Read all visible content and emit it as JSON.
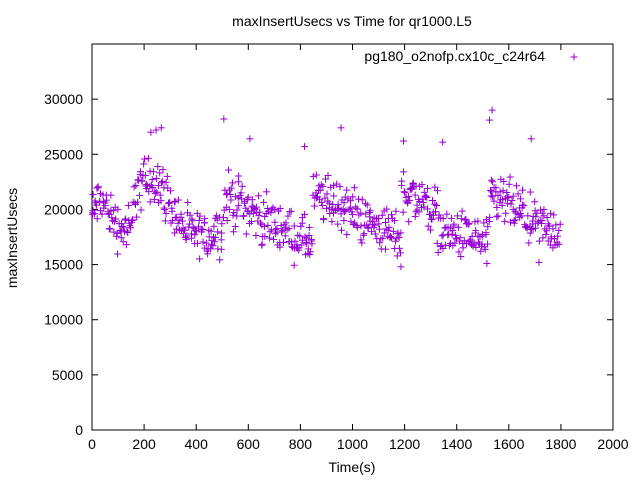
{
  "chart_data": {
    "type": "scatter",
    "title": "maxInsertUsecs vs Time for qr1000.L5",
    "xlabel": "Time(s)",
    "ylabel": "maxInsertUsecs",
    "xlim": [
      0,
      2000
    ],
    "ylim": [
      0,
      35000
    ],
    "x_ticks": [
      0,
      200,
      400,
      600,
      800,
      1000,
      1200,
      1400,
      1600,
      1800,
      2000
    ],
    "y_ticks": [
      0,
      5000,
      10000,
      15000,
      20000,
      25000,
      30000
    ],
    "grid": false,
    "legend_position": "top-right",
    "marker": "plus",
    "series": [
      {
        "name": "pg180_o2nofp.cx10c_c24r64",
        "color": "#9400d3",
        "x_range": [
          0,
          1795
        ],
        "x_step": 5,
        "segments": [
          {
            "x": [
              0,
              30
            ],
            "from": 19500,
            "to": 21000,
            "spread": 1600
          },
          {
            "x": [
              30,
              100
            ],
            "from": 21000,
            "to": 18500,
            "spread": 1600
          },
          {
            "x": [
              100,
              160
            ],
            "from": 18500,
            "to": 18000,
            "spread": 1700
          },
          {
            "x": [
              160,
              240
            ],
            "from": 21500,
            "to": 23000,
            "spread": 1800
          },
          {
            "x": [
              240,
              300
            ],
            "from": 23000,
            "to": 20500,
            "spread": 1800
          },
          {
            "x": [
              300,
              360
            ],
            "from": 20500,
            "to": 18000,
            "spread": 1600
          },
          {
            "x": [
              360,
              440
            ],
            "from": 18000,
            "to": 17500,
            "spread": 1500
          },
          {
            "x": [
              440,
              510
            ],
            "from": 17500,
            "to": 18500,
            "spread": 1600
          },
          {
            "x": [
              510,
              580
            ],
            "from": 21000,
            "to": 20500,
            "spread": 1800
          },
          {
            "x": [
              580,
              680
            ],
            "from": 20500,
            "to": 18500,
            "spread": 1700
          },
          {
            "x": [
              680,
              780
            ],
            "from": 19000,
            "to": 17500,
            "spread": 1600
          },
          {
            "x": [
              780,
              850
            ],
            "from": 17500,
            "to": 17000,
            "spread": 1500
          },
          {
            "x": [
              850,
              950
            ],
            "from": 21000,
            "to": 20500,
            "spread": 1800
          },
          {
            "x": [
              950,
              1050
            ],
            "from": 20500,
            "to": 19000,
            "spread": 1700
          },
          {
            "x": [
              1050,
              1140
            ],
            "from": 19000,
            "to": 18000,
            "spread": 1600
          },
          {
            "x": [
              1140,
              1190
            ],
            "from": 18000,
            "to": 17500,
            "spread": 1600
          },
          {
            "x": [
              1190,
              1260
            ],
            "from": 21500,
            "to": 21000,
            "spread": 1800
          },
          {
            "x": [
              1260,
              1330
            ],
            "from": 21000,
            "to": 19500,
            "spread": 1700
          },
          {
            "x": [
              1330,
              1440
            ],
            "from": 18000,
            "to": 17500,
            "spread": 1600
          },
          {
            "x": [
              1440,
              1530
            ],
            "from": 17500,
            "to": 17000,
            "spread": 1600
          },
          {
            "x": [
              1530,
              1600
            ],
            "from": 21000,
            "to": 20500,
            "spread": 1800
          },
          {
            "x": [
              1600,
              1700
            ],
            "from": 20500,
            "to": 18500,
            "spread": 1700
          },
          {
            "x": [
              1700,
              1800
            ],
            "from": 18500,
            "to": 18000,
            "spread": 1600
          }
        ],
        "outliers": [
          [
            226,
            27000
          ],
          [
            246,
            27200
          ],
          [
            266,
            27400
          ],
          [
            506,
            28200
          ],
          [
            606,
            26400
          ],
          [
            816,
            25700
          ],
          [
            956,
            27400
          ],
          [
            1196,
            26200
          ],
          [
            1346,
            26100
          ],
          [
            1526,
            28100
          ],
          [
            1536,
            29000
          ],
          [
            1686,
            26400
          ],
          [
            1186,
            14800
          ],
          [
            1516,
            15100
          ],
          [
            1716,
            15200
          ],
          [
            836,
            15900
          ]
        ]
      }
    ]
  }
}
